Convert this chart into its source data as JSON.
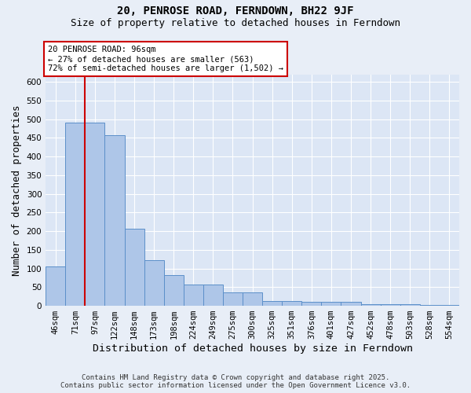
{
  "title": "20, PENROSE ROAD, FERNDOWN, BH22 9JF",
  "subtitle": "Size of property relative to detached houses in Ferndown",
  "xlabel": "Distribution of detached houses by size in Ferndown",
  "ylabel": "Number of detached properties",
  "footer_line1": "Contains HM Land Registry data © Crown copyright and database right 2025.",
  "footer_line2": "Contains public sector information licensed under the Open Government Licence v3.0.",
  "categories": [
    "46sqm",
    "71sqm",
    "97sqm",
    "122sqm",
    "148sqm",
    "173sqm",
    "198sqm",
    "224sqm",
    "249sqm",
    "275sqm",
    "300sqm",
    "325sqm",
    "351sqm",
    "376sqm",
    "401sqm",
    "427sqm",
    "452sqm",
    "478sqm",
    "503sqm",
    "528sqm",
    "554sqm"
  ],
  "values": [
    105,
    490,
    490,
    457,
    207,
    122,
    82,
    57,
    57,
    35,
    35,
    13,
    13,
    10,
    10,
    10,
    5,
    5,
    5,
    3,
    3
  ],
  "bar_color": "#aec6e8",
  "bar_edge_color": "#5b8fc9",
  "vline_x_idx": 2,
  "vline_color": "#cc0000",
  "annotation_text": "20 PENROSE ROAD: 96sqm\n← 27% of detached houses are smaller (563)\n72% of semi-detached houses are larger (1,502) →",
  "annotation_box_color": "#cc0000",
  "ylim": [
    0,
    620
  ],
  "yticks": [
    0,
    50,
    100,
    150,
    200,
    250,
    300,
    350,
    400,
    450,
    500,
    550,
    600
  ],
  "bg_color": "#e8eef7",
  "plot_bg_color": "#dce6f5",
  "grid_color": "#ffffff",
  "title_fontsize": 10,
  "subtitle_fontsize": 9,
  "axis_label_fontsize": 9,
  "tick_fontsize": 7.5,
  "footer_fontsize": 6.5,
  "annotation_fontsize": 7.5
}
